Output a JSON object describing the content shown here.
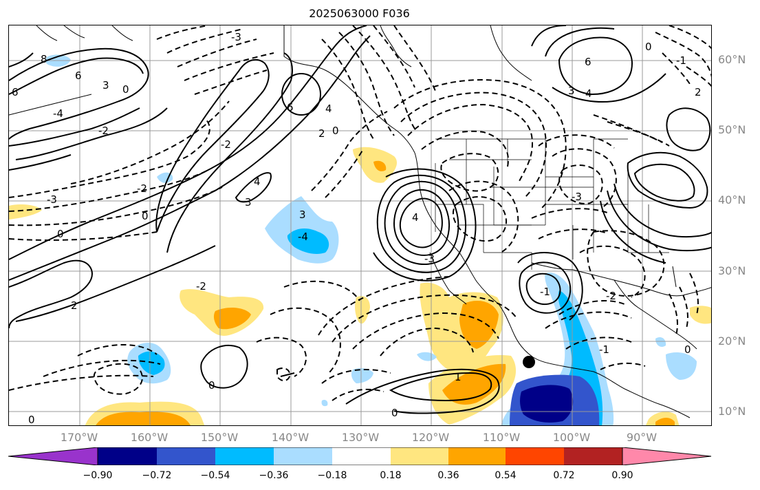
{
  "title": "2025063000 F036",
  "lat_labels": [
    "60°N",
    "50°N",
    "40°N",
    "30°N",
    "20°N",
    "10°N"
  ],
  "lon_labels": [
    "170°W",
    "160°W",
    "150°W",
    "140°W",
    "130°W",
    "120°W",
    "110°W",
    "100°W",
    "90°W"
  ],
  "colorbar": {
    "ticks": [
      "−0.90",
      "−0.72",
      "−0.54",
      "−0.36",
      "−0.18",
      "0.18",
      "0.36",
      "0.54",
      "0.72",
      "0.90"
    ],
    "colors": [
      "#9933cc",
      "#000088",
      "#3355cc",
      "#00bbff",
      "#aaddff",
      "#ffffff",
      "#ffe680",
      "#ffa500",
      "#ff4500",
      "#b22222",
      "#ff88aa"
    ]
  },
  "contour_labels": {
    "a": "-3",
    "b": "8",
    "c": "6",
    "d": "6",
    "e": "3",
    "f": "0",
    "g": "-4",
    "h": "-2",
    "i": "6",
    "j": "4",
    "k": "2",
    "l": "0",
    "m": "-2",
    "n": "-3",
    "o": "0",
    "p": "4",
    "q": "3",
    "r": "-2",
    "s": "3",
    "t": "-4",
    "u": "0",
    "v": "4",
    "w": "-3",
    "x": "6",
    "y": "4",
    "z": "3",
    "aa": "0",
    "ab": "-1",
    "ac": "2",
    "ad": "-3",
    "ae": "2",
    "af": "-2",
    "ag": "0",
    "ah": "1",
    "ai": "0",
    "aj": "0",
    "ak": "-2",
    "al": "-1",
    "am": "0",
    "an": "-1"
  },
  "grid": true,
  "projection": "cylindrical",
  "marker": "point"
}
